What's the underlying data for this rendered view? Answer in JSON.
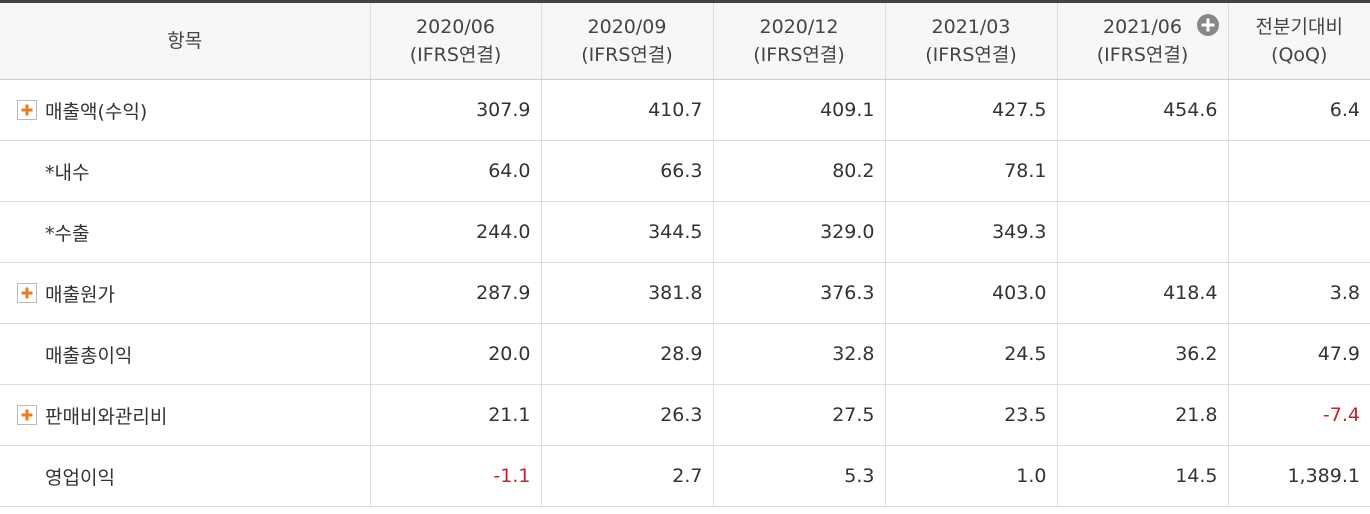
{
  "table": {
    "header": [
      [
        "항목"
      ],
      [
        "2020/06",
        "(IFRS연결)"
      ],
      [
        "2020/09",
        "(IFRS연결)"
      ],
      [
        "2020/12",
        "(IFRS연결)"
      ],
      [
        "2021/03",
        "(IFRS연결)"
      ],
      [
        "2021/06",
        "(IFRS연결)"
      ],
      [
        "전분기대비",
        "(QoQ)"
      ]
    ],
    "rows": [
      {
        "label": "매출액(수익)",
        "expandable": true,
        "cells": [
          "307.9",
          "410.7",
          "409.1",
          "427.5",
          "454.6",
          "6.4"
        ]
      },
      {
        "label": "*내수",
        "expandable": false,
        "cells": [
          "64.0",
          "66.3",
          "80.2",
          "78.1",
          null,
          null
        ]
      },
      {
        "label": "*수출",
        "expandable": false,
        "cells": [
          "244.0",
          "344.5",
          "329.0",
          "349.3",
          null,
          null
        ]
      },
      {
        "label": "매출원가",
        "expandable": true,
        "cells": [
          "287.9",
          "381.8",
          "376.3",
          "403.0",
          "418.4",
          "3.8"
        ]
      },
      {
        "label": "매출총이익",
        "expandable": false,
        "cells": [
          "20.0",
          "28.9",
          "32.8",
          "24.5",
          "36.2",
          "47.9"
        ]
      },
      {
        "label": "판매비와관리비",
        "expandable": true,
        "cells": [
          "21.1",
          "26.3",
          "27.5",
          "23.5",
          "21.8",
          "-7.4"
        ]
      },
      {
        "label": "영업이익",
        "expandable": false,
        "cells": [
          "-1.1",
          "2.7",
          "5.3",
          "1.0",
          "14.5",
          "1,389.1"
        ]
      }
    ]
  }
}
